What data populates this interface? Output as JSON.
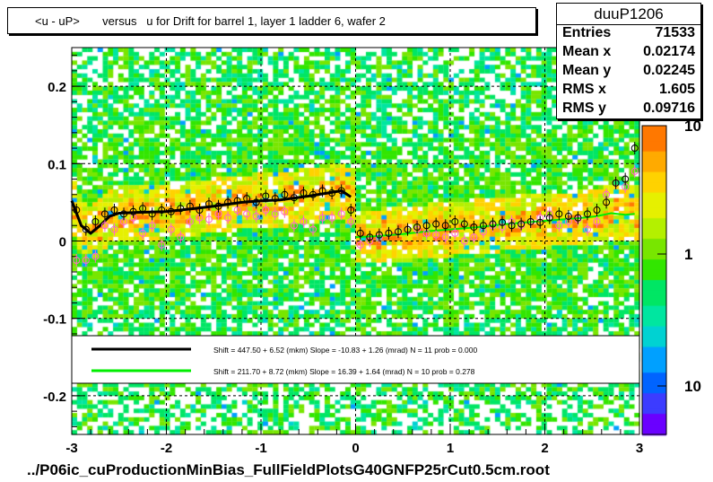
{
  "title": {
    "ylabel": "<u - uP>",
    "text": "versus   u for Drift for barrel 1, layer 1 ladder 6, wafer 2"
  },
  "stats": {
    "name": "duuP1206",
    "rows": [
      {
        "key": "Entries",
        "value": "71533"
      },
      {
        "key": "Mean x",
        "value": "0.02174"
      },
      {
        "key": "Mean y",
        "value": "0.02245"
      },
      {
        "key": "RMS x",
        "value": "1.605"
      },
      {
        "key": "RMS y",
        "value": "0.09716"
      }
    ]
  },
  "footer": "../P06ic_cuProductionMinBias_FullFieldPlotsG40GNFP25rCut0.5cm.root",
  "legend": {
    "entries": [
      {
        "color": "#000000",
        "text": "Shift =   447.50 + 6.52 (mkm) Slope =   -10.83 + 1.26 (mrad)  N = 11 prob = 0.000"
      },
      {
        "color": "#00ee00",
        "text": "Shift =   211.70 + 8.72 (mkm) Slope =    16.39 + 1.64 (mrad)  N = 10 prob = 0.278"
      }
    ]
  },
  "colors": {
    "black_fit": "#000000",
    "green_fit": "#00ee00",
    "open_markers": "#000000",
    "pink_markers": "#ff66cc"
  },
  "chart_data": {
    "type": "heatmap",
    "title": "<u - uP>       versus   u for Drift for barrel 1, layer 1 ladder 6, wafer 2",
    "xlim": [
      -3,
      3
    ],
    "ylim": [
      -0.25,
      0.25
    ],
    "x_ticks": [
      -3,
      -2,
      -1,
      0,
      1,
      2,
      3
    ],
    "y_ticks": [
      -0.2,
      -0.1,
      0,
      0.1,
      0.2
    ],
    "x_tick_labels": [
      "-3",
      "-2",
      "-1",
      "0",
      "1",
      "2",
      "3"
    ],
    "y_tick_labels": [
      "-0.2",
      "-0.1",
      "0",
      "0.1",
      "0.2"
    ],
    "colorbar": {
      "scale": "log",
      "labels": [
        "10",
        "1",
        "10"
      ]
    },
    "grid": true,
    "black_fit": {
      "x": [
        -3.0,
        -2.9,
        -2.8,
        -2.7,
        -2.6,
        -2.5,
        -2.3,
        -2.0,
        -1.7,
        -1.5,
        -1.2,
        -1.0,
        -0.8,
        -0.5,
        -0.3,
        -0.15,
        -0.05
      ],
      "y": [
        0.052,
        0.02,
        0.01,
        0.02,
        0.032,
        0.036,
        0.037,
        0.038,
        0.042,
        0.045,
        0.05,
        0.052,
        0.053,
        0.058,
        0.062,
        0.065,
        0.057
      ]
    },
    "green_fit": {
      "x": [
        0.0,
        0.2,
        0.5,
        0.8,
        1.0,
        1.3,
        1.6,
        1.9,
        2.2,
        2.4,
        2.55,
        2.7,
        2.85,
        2.95
      ],
      "y": [
        0.005,
        0.006,
        0.009,
        0.013,
        0.015,
        0.018,
        0.022,
        0.025,
        0.028,
        0.03,
        0.032,
        0.036,
        0.034,
        0.035
      ]
    },
    "open_markers": {
      "x": [
        -2.95,
        -2.85,
        -2.75,
        -2.65,
        -2.55,
        -2.45,
        -2.35,
        -2.25,
        -2.15,
        -2.05,
        -1.95,
        -1.85,
        -1.75,
        -1.65,
        -1.55,
        -1.45,
        -1.35,
        -1.25,
        -1.15,
        -1.05,
        -0.95,
        -0.85,
        -0.75,
        -0.65,
        -0.55,
        -0.45,
        -0.35,
        -0.25,
        -0.15,
        -0.05,
        0.05,
        0.15,
        0.25,
        0.35,
        0.45,
        0.55,
        0.65,
        0.75,
        0.85,
        0.95,
        1.05,
        1.15,
        1.25,
        1.35,
        1.45,
        1.55,
        1.65,
        1.75,
        1.85,
        1.95,
        2.05,
        2.15,
        2.25,
        2.35,
        2.45,
        2.55,
        2.65,
        2.75,
        2.85,
        2.95
      ],
      "y": [
        0.04,
        0.015,
        0.025,
        0.035,
        0.04,
        0.035,
        0.038,
        0.042,
        0.035,
        0.04,
        0.038,
        0.042,
        0.045,
        0.04,
        0.048,
        0.045,
        0.05,
        0.052,
        0.055,
        0.05,
        0.058,
        0.055,
        0.06,
        0.056,
        0.062,
        0.06,
        0.065,
        0.062,
        0.065,
        0.04,
        0.01,
        0.005,
        0.008,
        0.01,
        0.012,
        0.015,
        0.018,
        0.02,
        0.022,
        0.02,
        0.025,
        0.022,
        0.018,
        0.02,
        0.022,
        0.024,
        0.02,
        0.022,
        0.025,
        0.024,
        0.03,
        0.035,
        0.032,
        0.03,
        0.035,
        0.04,
        0.05,
        0.075,
        0.08,
        0.12
      ]
    },
    "pink_markers": {
      "x": [
        -2.95,
        -2.85,
        -2.75,
        -2.65,
        -2.55,
        -2.45,
        -2.35,
        -2.25,
        -2.15,
        -2.05,
        -1.95,
        -1.85,
        -1.75,
        -1.65,
        -1.55,
        -1.45,
        -1.35,
        -1.25,
        -1.15,
        -1.05,
        -0.95,
        -0.85,
        -0.75,
        -0.65,
        -0.55,
        -0.45,
        -0.35,
        -0.25,
        -0.15,
        -0.05,
        0.05,
        0.15,
        0.25,
        0.35,
        0.45,
        0.55,
        0.65,
        0.75,
        0.85,
        0.95,
        1.05,
        1.15,
        1.25,
        1.35,
        1.45,
        1.55,
        1.65,
        1.75,
        1.85,
        1.95,
        2.05,
        2.15,
        2.25,
        2.35,
        2.45,
        2.55,
        2.65,
        2.75,
        2.85,
        2.95
      ],
      "y": [
        -0.025,
        -0.025,
        -0.02,
        0.02,
        0.015,
        0.025,
        0.03,
        0.01,
        0.02,
        -0.005,
        0.015,
        0.005,
        0.025,
        0.03,
        0.028,
        0.035,
        0.03,
        0.04,
        0.035,
        0.032,
        0.04,
        0.035,
        0.038,
        0.02,
        0.025,
        0.015,
        0.03,
        0.03,
        0.035,
        0.025,
        -0.005,
        0.0,
        0.005,
        0.01,
        0.012,
        0.015,
        0.015,
        0.01,
        0.008,
        0.005,
        0.01,
        0.0,
        0.005,
        0.012,
        0.02,
        0.018,
        0.025,
        0.02,
        0.025,
        0.03,
        0.035,
        0.02,
        0.025,
        0.028,
        0.015,
        0.025,
        0.06,
        0.075,
        0.07,
        0.09
      ]
    }
  }
}
